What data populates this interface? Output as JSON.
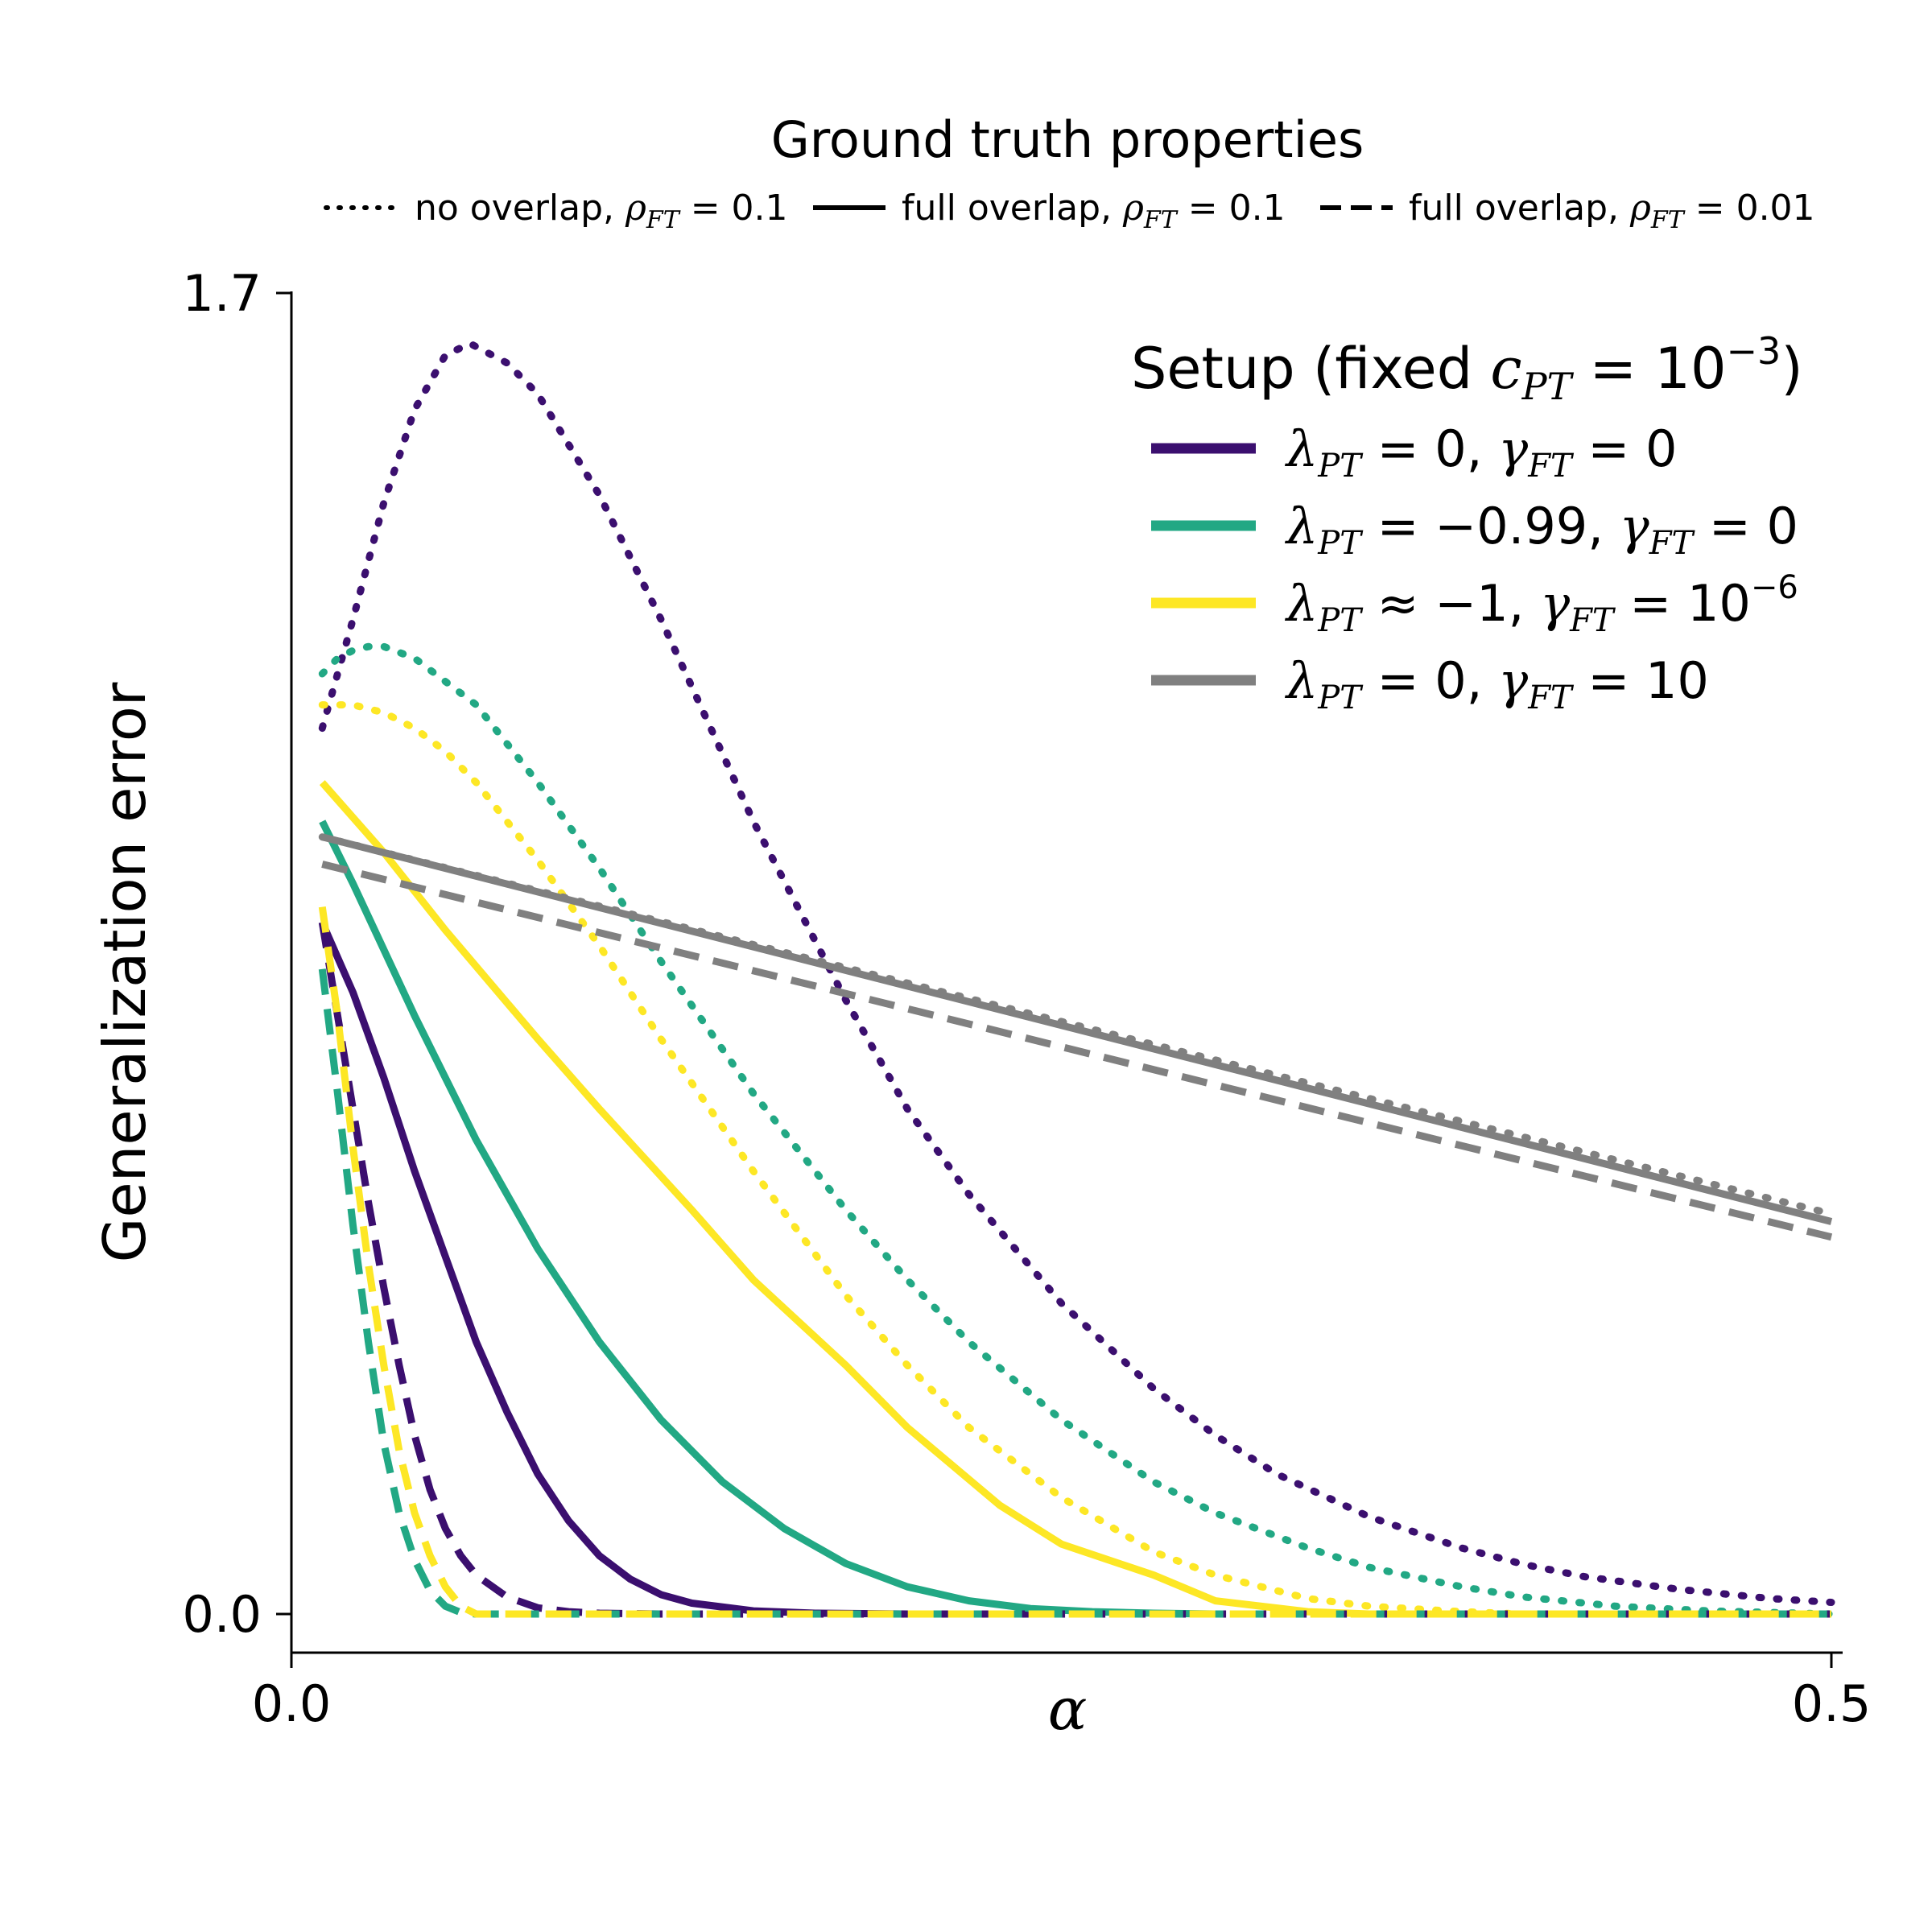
{
  "chart_data": {
    "type": "line",
    "title": "",
    "xlabel": "α",
    "ylabel": "Generalization error",
    "xlim": [
      0.0,
      0.5
    ],
    "ylim": [
      0.0,
      1.7
    ],
    "x_ticks": [
      "0.0",
      "0.5"
    ],
    "y_ticks": [
      "0.0",
      "1.7"
    ],
    "grid": false,
    "linestyle_legend": {
      "title": "Ground truth properties",
      "placement": "top-center, above axes",
      "entries": [
        {
          "style": "dotted",
          "prefix": "no overlap, ",
          "sym": "ρ",
          "sub": "FT",
          "eq": " = 0.1"
        },
        {
          "style": "solid",
          "prefix": "full overlap, ",
          "sym": "ρ",
          "sub": "FT",
          "eq": " = 0.1"
        },
        {
          "style": "dashed",
          "prefix": "full overlap, ",
          "sym": "ρ",
          "sub": "FT",
          "eq": " = 0.01"
        }
      ]
    },
    "color_legend": {
      "title_prefix": "Setup (fixed ",
      "title_sym": "c",
      "title_sub": "PT",
      "title_eq": " = 10",
      "title_sup": "−3",
      "title_suffix": ")",
      "placement": "top-right",
      "entries": [
        {
          "color": "#3b0f6f",
          "lam_rel": " = 0, ",
          "gam_rel": " = 0",
          "gam_sup": ""
        },
        {
          "color": "#22a884",
          "lam_rel": " = −0.99, ",
          "gam_rel": " = 0",
          "gam_sup": ""
        },
        {
          "color": "#fde725",
          "lam_rel": " ≈ −1, ",
          "gam_rel": " = 10",
          "gam_sup": "−6"
        },
        {
          "color": "#808080",
          "lam_rel": " = 0, ",
          "gam_rel": " = 10",
          "gam_sup": ""
        }
      ]
    },
    "series": [
      {
        "name": "λPT=0, γFT=0 — no overlap, ρFT=0.1",
        "color": "#3b0f6f",
        "style": "dotted",
        "x": [
          0.01,
          0.02,
          0.03,
          0.04,
          0.05,
          0.058,
          0.07,
          0.08,
          0.1,
          0.12,
          0.15,
          0.18,
          0.2,
          0.22,
          0.25,
          0.28,
          0.3,
          0.32,
          0.35,
          0.38,
          0.4,
          0.42,
          0.45,
          0.48,
          0.5
        ],
        "y": [
          1.14,
          1.28,
          1.43,
          1.55,
          1.62,
          1.635,
          1.61,
          1.57,
          1.44,
          1.28,
          1.02,
          0.79,
          0.65,
          0.54,
          0.4,
          0.29,
          0.23,
          0.18,
          0.125,
          0.085,
          0.064,
          0.048,
          0.032,
          0.02,
          0.015
        ]
      },
      {
        "name": "λPT=−0.99, γFT=0 — no overlap, ρFT=0.1",
        "color": "#22a884",
        "style": "dotted",
        "x": [
          0.01,
          0.015,
          0.02,
          0.025,
          0.03,
          0.04,
          0.05,
          0.06,
          0.08,
          0.1,
          0.12,
          0.15,
          0.18,
          0.2,
          0.22,
          0.25,
          0.28,
          0.3,
          0.33,
          0.35,
          0.38,
          0.4,
          0.43,
          0.46,
          0.5
        ],
        "y": [
          1.21,
          1.23,
          1.24,
          1.245,
          1.245,
          1.23,
          1.2,
          1.17,
          1.07,
          0.96,
          0.84,
          0.67,
          0.52,
          0.43,
          0.35,
          0.25,
          0.17,
          0.13,
          0.085,
          0.06,
          0.035,
          0.022,
          0.01,
          0.004,
          0.0
        ]
      },
      {
        "name": "λPT≈−1, γFT=10⁻⁶ — no overlap, ρFT=0.1",
        "color": "#fde725",
        "style": "dotted",
        "x": [
          0.01,
          0.02,
          0.03,
          0.04,
          0.05,
          0.06,
          0.07,
          0.08,
          0.1,
          0.12,
          0.15,
          0.18,
          0.2,
          0.22,
          0.25,
          0.28,
          0.3,
          0.33,
          0.35,
          0.38,
          0.4,
          0.45,
          0.5
        ],
        "y": [
          1.17,
          1.17,
          1.16,
          1.14,
          1.11,
          1.07,
          1.02,
          0.97,
          0.86,
          0.74,
          0.57,
          0.41,
          0.32,
          0.24,
          0.15,
          0.08,
          0.05,
          0.02,
          0.01,
          0.003,
          0.0,
          0.0,
          0.0
        ]
      },
      {
        "name": "λPT=0, γFT=10 — no overlap, ρFT=0.1",
        "color": "#808080",
        "style": "dotted",
        "x": [
          0.01,
          0.5
        ],
        "y": [
          1.0,
          0.515
        ]
      },
      {
        "name": "λPT=0, γFT=0 — full overlap, ρFT=0.1",
        "color": "#3b0f6f",
        "style": "solid",
        "x": [
          0.01,
          0.02,
          0.03,
          0.04,
          0.05,
          0.06,
          0.07,
          0.08,
          0.09,
          0.1,
          0.11,
          0.12,
          0.13,
          0.15,
          0.17,
          0.2,
          0.25
        ],
        "y": [
          0.89,
          0.8,
          0.69,
          0.57,
          0.46,
          0.35,
          0.26,
          0.18,
          0.12,
          0.075,
          0.045,
          0.025,
          0.014,
          0.004,
          0.001,
          0.0,
          0.0
        ]
      },
      {
        "name": "λPT=−0.99, γFT=0 — full overlap, ρFT=0.1",
        "color": "#22a884",
        "style": "solid",
        "x": [
          0.01,
          0.02,
          0.04,
          0.06,
          0.08,
          0.1,
          0.12,
          0.14,
          0.16,
          0.18,
          0.2,
          0.22,
          0.24,
          0.26,
          0.28,
          0.3
        ],
        "y": [
          1.02,
          0.94,
          0.77,
          0.61,
          0.47,
          0.35,
          0.25,
          0.17,
          0.11,
          0.065,
          0.035,
          0.017,
          0.007,
          0.003,
          0.001,
          0.0
        ]
      },
      {
        "name": "λPT≈−1, γFT=10⁻⁶ — full overlap, ρFT=0.1",
        "color": "#fde725",
        "style": "solid",
        "x": [
          0.01,
          0.03,
          0.05,
          0.08,
          0.1,
          0.13,
          0.15,
          0.18,
          0.2,
          0.23,
          0.25,
          0.28,
          0.3,
          0.33,
          0.35,
          0.5
        ],
        "y": [
          1.07,
          0.98,
          0.88,
          0.74,
          0.65,
          0.52,
          0.43,
          0.32,
          0.24,
          0.14,
          0.09,
          0.05,
          0.017,
          0.003,
          0.0,
          0.0
        ]
      },
      {
        "name": "λPT=0, γFT=10 — full overlap, ρFT=0.1",
        "color": "#808080",
        "style": "solid",
        "x": [
          0.01,
          0.5
        ],
        "y": [
          1.0,
          0.505
        ]
      },
      {
        "name": "λPT=0, γFT=0 — full overlap, ρFT=0.01",
        "color": "#3b0f6f",
        "style": "dashed",
        "x": [
          0.01,
          0.015,
          0.02,
          0.025,
          0.03,
          0.035,
          0.04,
          0.045,
          0.05,
          0.055,
          0.06,
          0.07,
          0.08,
          0.09,
          0.1,
          0.12,
          0.5
        ],
        "y": [
          0.89,
          0.77,
          0.65,
          0.53,
          0.42,
          0.32,
          0.23,
          0.16,
          0.11,
          0.075,
          0.05,
          0.022,
          0.008,
          0.003,
          0.001,
          0.0,
          0.0
        ]
      },
      {
        "name": "λPT=−0.99, γFT=0 — full overlap, ρFT=0.01",
        "color": "#22a884",
        "style": "dashed",
        "x": [
          0.01,
          0.015,
          0.02,
          0.025,
          0.03,
          0.035,
          0.04,
          0.045,
          0.05,
          0.055,
          0.06,
          0.5
        ],
        "y": [
          0.83,
          0.67,
          0.5,
          0.35,
          0.22,
          0.13,
          0.07,
          0.03,
          0.01,
          0.002,
          0.0,
          0.0
        ]
      },
      {
        "name": "λPT≈−1, γFT=10⁻⁶ — full overlap, ρFT=0.01",
        "color": "#fde725",
        "style": "dashed",
        "x": [
          0.01,
          0.015,
          0.02,
          0.025,
          0.03,
          0.035,
          0.04,
          0.045,
          0.05,
          0.055,
          0.06,
          0.5
        ],
        "y": [
          0.91,
          0.77,
          0.6,
          0.45,
          0.32,
          0.21,
          0.13,
          0.075,
          0.035,
          0.01,
          0.0,
          0.0
        ]
      },
      {
        "name": "λPT=0, γFT=10 — full overlap, ρFT=0.01",
        "color": "#808080",
        "style": "dashed",
        "x": [
          0.01,
          0.5
        ],
        "y": [
          0.965,
          0.485
        ]
      }
    ]
  }
}
